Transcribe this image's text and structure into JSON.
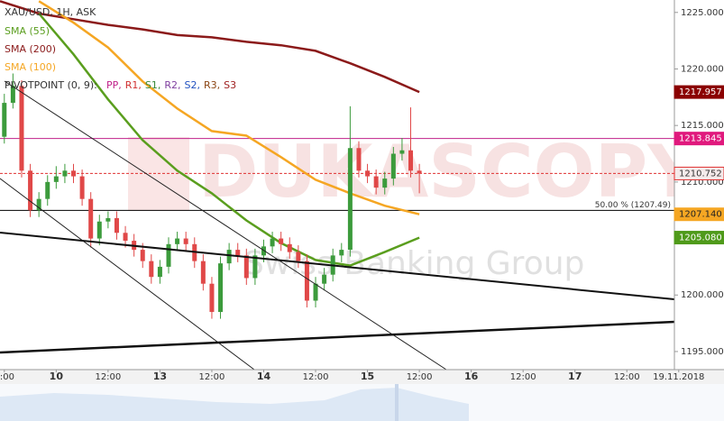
{
  "chart_data": {
    "type": "candlestick",
    "title": "XAU/USD, 1H, ASK",
    "legend": [
      {
        "name": "SMA (55)",
        "color": "#5a9e1e"
      },
      {
        "name": "SMA (200)",
        "color": "#8b1a1a"
      },
      {
        "name": "SMA (100)",
        "color": "#f5a623"
      }
    ],
    "pivot_title": "PIVOTPOINT (0, 9):",
    "pivot_labels": [
      {
        "name": "PP,",
        "color": "#c0208a"
      },
      {
        "name": "R1,",
        "color": "#d03030"
      },
      {
        "name": "S1,",
        "color": "#3a8a3a"
      },
      {
        "name": "R2,",
        "color": "#8040a0"
      },
      {
        "name": "S2,",
        "color": "#2050c0"
      },
      {
        "name": "R3,",
        "color": "#8b4513"
      },
      {
        "name": "S3",
        "color": "#a02020"
      }
    ],
    "watermark": [
      "DUKASCOPY",
      "Swiss Banking Group"
    ],
    "up_color": "#3c9b3c",
    "down_color": "#e04848",
    "candles": {
      "x": [
        0,
        2,
        4,
        6,
        8,
        10,
        12,
        14,
        16,
        18,
        20,
        22,
        24,
        26,
        28,
        30,
        32,
        34,
        36,
        38,
        40,
        42,
        44,
        46,
        48,
        50,
        52,
        54,
        56,
        58,
        60,
        62,
        64,
        66,
        68,
        70,
        72,
        74,
        76,
        78,
        80,
        82,
        84,
        86,
        88,
        90,
        92,
        94,
        96
      ],
      "open": [
        1214,
        1217,
        1218.5,
        1211,
        1207.5,
        1208.5,
        1210,
        1210.5,
        1211,
        1210.5,
        1208.5,
        1205,
        1206.5,
        1206.8,
        1205.5,
        1204.8,
        1204,
        1203,
        1201.6,
        1202.5,
        1204.5,
        1205,
        1204.5,
        1203,
        1201,
        1198.5,
        1202.8,
        1204,
        1203.5,
        1201.5,
        1203.5,
        1204.3,
        1205,
        1204.5,
        1203.8,
        1203,
        1199.5,
        1201,
        1201.8,
        1203.5,
        1204,
        1213,
        1211,
        1210.5,
        1209.5,
        1210.3,
        1212.5,
        1212.8,
        1211
      ],
      "high": [
        1217.8,
        1219.6,
        1219,
        1211.6,
        1209.1,
        1210.6,
        1211.4,
        1211.6,
        1211.6,
        1211.1,
        1209.1,
        1207.1,
        1207.4,
        1207.4,
        1206.1,
        1205.4,
        1204.6,
        1203.6,
        1203.1,
        1205.1,
        1205.6,
        1205.6,
        1205.1,
        1203.6,
        1201.6,
        1203.4,
        1204.6,
        1204.6,
        1204.1,
        1204.1,
        1204.9,
        1205.6,
        1205.6,
        1205.1,
        1204.4,
        1203.6,
        1201.6,
        1202.4,
        1204.1,
        1204.6,
        1216.7,
        1213.6,
        1211.6,
        1211.1,
        1210.9,
        1213.1,
        1213.9,
        1216.6,
        1211.6
      ],
      "low": [
        1213.4,
        1216.5,
        1210.4,
        1206.9,
        1206.9,
        1207.9,
        1209.4,
        1209.9,
        1209.9,
        1207.9,
        1204.2,
        1204.4,
        1205.9,
        1204.9,
        1204.2,
        1203.4,
        1202.4,
        1201,
        1201,
        1201.9,
        1203.9,
        1203.9,
        1202.4,
        1200.4,
        1197.9,
        1197.9,
        1202.2,
        1202.9,
        1200.9,
        1200.9,
        1202.9,
        1203.7,
        1203.9,
        1203.2,
        1202.4,
        1198.9,
        1198.9,
        1200.4,
        1201.2,
        1202.9,
        1203.4,
        1210.4,
        1209.9,
        1208.9,
        1208.9,
        1209.7,
        1211.9,
        1210.4,
        1209
      ],
      "close": [
        1217,
        1218.5,
        1211,
        1207.5,
        1208.5,
        1210,
        1210.5,
        1211,
        1210.5,
        1208.5,
        1205,
        1206.5,
        1206.8,
        1205.5,
        1204.8,
        1204,
        1203,
        1201.6,
        1202.5,
        1204.5,
        1205,
        1204.5,
        1203,
        1201,
        1198.5,
        1202.8,
        1204,
        1203.5,
        1201.5,
        1203.5,
        1204.3,
        1205,
        1204.5,
        1203.8,
        1203,
        1199.5,
        1201,
        1201.8,
        1203.5,
        1204,
        1213,
        1211,
        1210.5,
        1209.5,
        1210.3,
        1212.5,
        1212.8,
        1211,
        1210.752
      ]
    },
    "series": [
      {
        "name": "SMA (200)",
        "color": "#8b1a1a",
        "x": [
          -1,
          8,
          16,
          24,
          32,
          40,
          48,
          56,
          64,
          72,
          80,
          88,
          96
        ],
        "values": [
          1226.0,
          1224.9,
          1224.4,
          1223.9,
          1223.5,
          1223.0,
          1222.8,
          1222.4,
          1222.1,
          1221.6,
          1220.5,
          1219.3,
          1217.957
        ]
      },
      {
        "name": "SMA (100)",
        "color": "#f5a623",
        "x": [
          -1,
          8,
          16,
          24,
          32,
          40,
          48,
          56,
          64,
          72,
          80,
          88,
          96
        ],
        "values": [
          null,
          1226.0,
          1224.1,
          1221.9,
          1218.9,
          1216.5,
          1214.5,
          1214.1,
          1212.2,
          1210.2,
          1209.0,
          1207.9,
          1207.14
        ]
      },
      {
        "name": "SMA (55)",
        "color": "#5a9e1e",
        "x": [
          -1,
          8,
          16,
          24,
          32,
          40,
          48,
          56,
          64,
          72,
          80,
          88,
          96
        ],
        "values": [
          null,
          1224.9,
          1221.3,
          1217.3,
          1213.7,
          1211.0,
          1209.0,
          1206.6,
          1204.6,
          1203.1,
          1202.6,
          1203.8,
          1205.08
        ]
      }
    ],
    "levels": [
      {
        "value": 1213.845,
        "color": "#c0208a",
        "style": "solid"
      },
      {
        "value": 1210.752,
        "color": "#e03030",
        "style": "dashed"
      },
      {
        "value": 1207.49,
        "color": "#000000",
        "style": "solid",
        "label": "50.00 % (1207.49)"
      }
    ],
    "price_tags": [
      {
        "value": 1217.957,
        "label": "1217.957",
        "color": "#8b0000",
        "text_color": "#ffffff"
      },
      {
        "value": 1213.845,
        "label": "1213.845",
        "color": "#e0197d",
        "text_color": "#ffffff"
      },
      {
        "value": 1210.752,
        "label": "1210.752",
        "color": "#f4eaea",
        "text_color": "#333333"
      },
      {
        "value": 1207.14,
        "label": "1207.140",
        "color": "#f5a623",
        "text_color": "#222222"
      },
      {
        "value": 1205.08,
        "label": "1205.080",
        "color": "#4f9a1a",
        "text_color": "#ffffff"
      }
    ],
    "xlim": [
      -1,
      155
    ],
    "ylim": [
      1193.4,
      1226.1
    ],
    "xticks": [
      {
        "value": 0,
        "label": "2:00"
      },
      {
        "value": 12,
        "label": "10"
      },
      {
        "value": 24,
        "label": "12:00"
      },
      {
        "value": 36,
        "label": "13"
      },
      {
        "value": 48,
        "label": "12:00"
      },
      {
        "value": 60,
        "label": "14"
      },
      {
        "value": 72,
        "label": "12:00"
      },
      {
        "value": 84,
        "label": "15"
      },
      {
        "value": 96,
        "label": "12:00"
      },
      {
        "value": 108,
        "label": "16"
      },
      {
        "value": 120,
        "label": "12:00"
      },
      {
        "value": 132,
        "label": "17"
      },
      {
        "value": 144,
        "label": "12:00"
      },
      {
        "value": 156,
        "label": "19.11.2018"
      }
    ],
    "yticks": [
      {
        "value": 1195,
        "label": "1195.000"
      },
      {
        "value": 1200,
        "label": "1200.000"
      },
      {
        "value": 1205,
        "label": "1205.000"
      },
      {
        "value": 1210,
        "label": "1210.000"
      },
      {
        "value": 1215,
        "label": "1215.000"
      },
      {
        "value": 1220,
        "label": "1220.000"
      },
      {
        "value": 1225,
        "label": "1225.000"
      }
    ]
  }
}
